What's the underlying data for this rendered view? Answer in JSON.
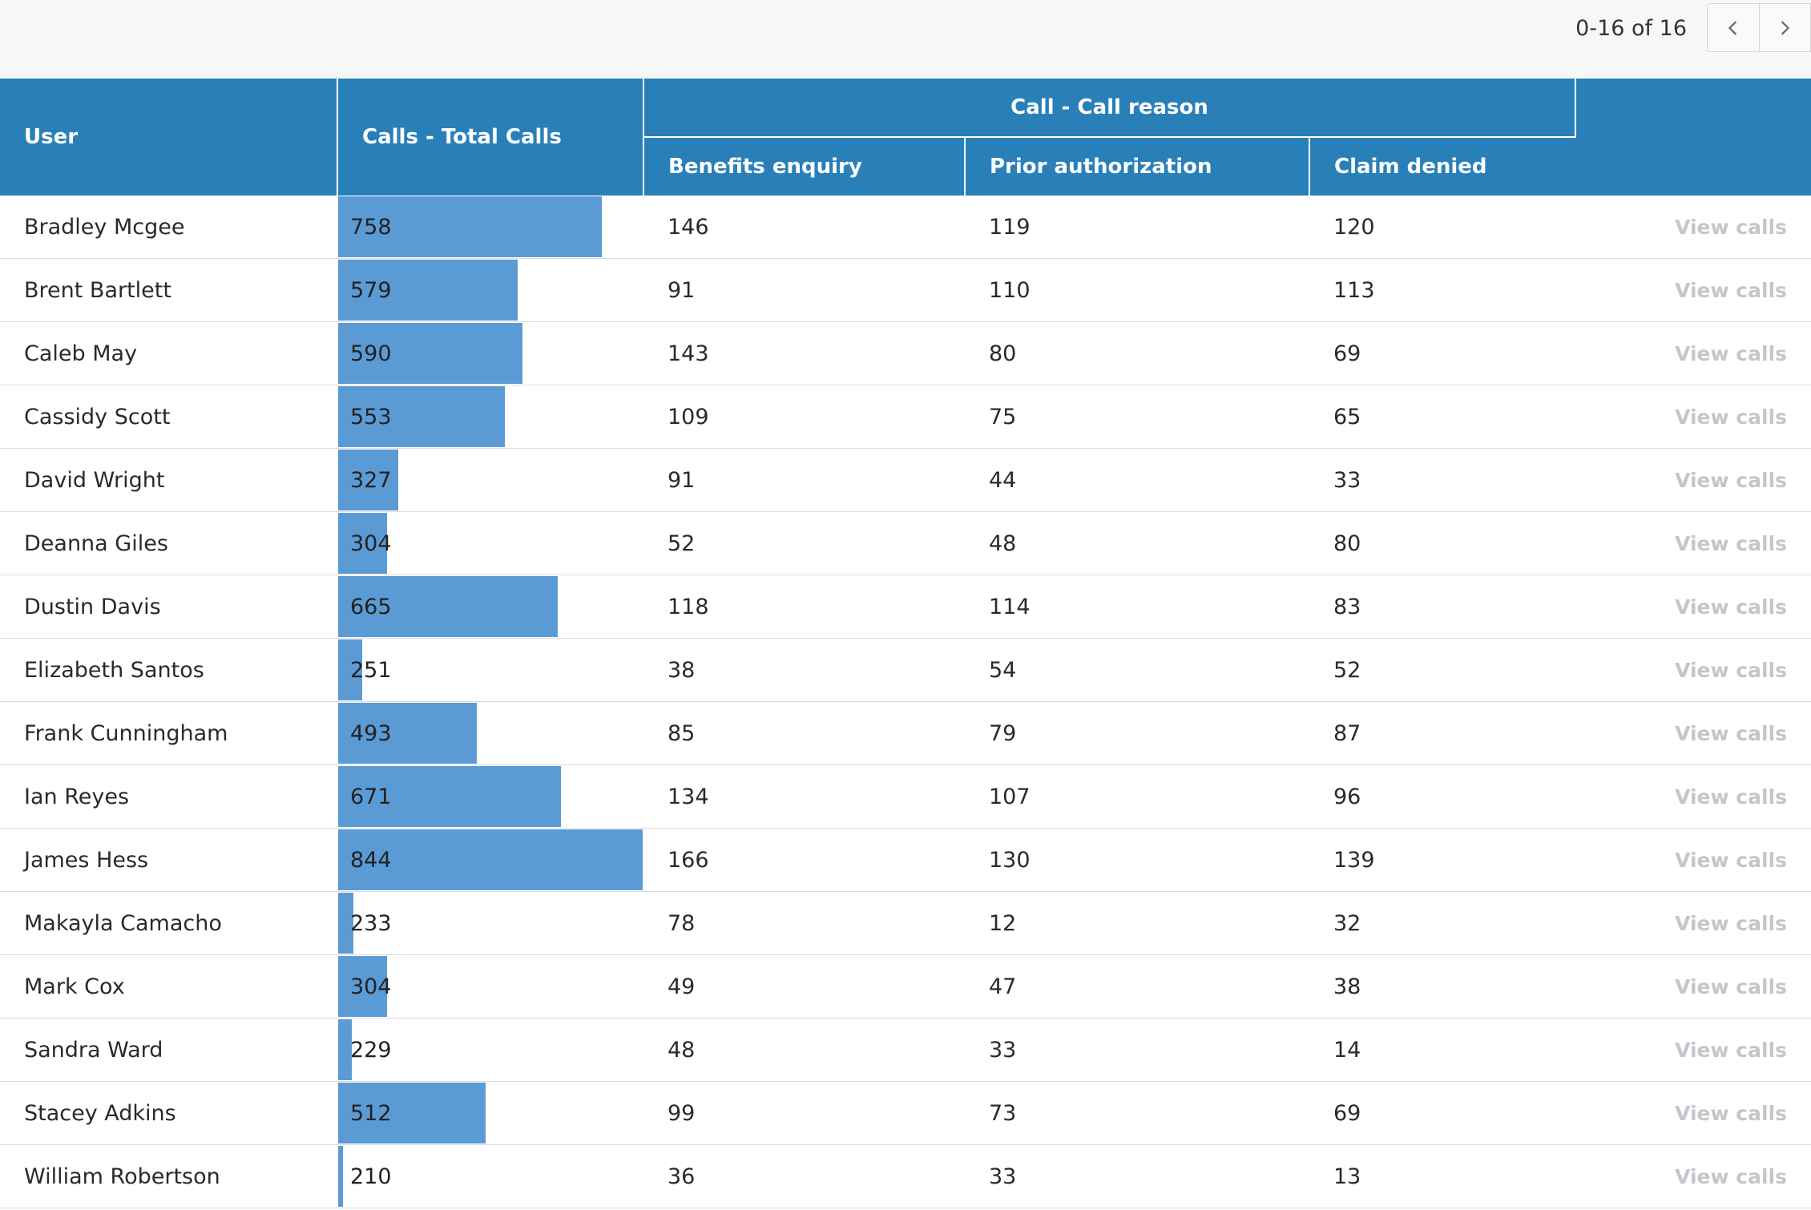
{
  "pagination": {
    "range_text": "0-16 of 16",
    "prev_icon": "chevron-left-icon",
    "next_icon": "chevron-right-icon"
  },
  "colors": {
    "header_bg": "#2980b9",
    "bar": "#5b9bd5",
    "link": "#2d7fbd",
    "view_calls": "#c3c6ca"
  },
  "table": {
    "headers": {
      "user": "User",
      "total_calls": "Calls - Total Calls",
      "group": "Call - Call reason",
      "benefits": "Benefits enquiry",
      "prior_auth": "Prior authorization",
      "claim_denied": "Claim denied"
    },
    "action_label": "View calls",
    "bar_max": 844,
    "rows": [
      {
        "user": "Bradley Mcgee",
        "total": 758,
        "benefits": "146",
        "prior_auth": "119",
        "claim_denied": "120"
      },
      {
        "user": "Brent Bartlett",
        "total": 579,
        "benefits": "91",
        "prior_auth": "110",
        "claim_denied": "113"
      },
      {
        "user": "Caleb May",
        "total": 590,
        "benefits": "143",
        "prior_auth": "80",
        "claim_denied": "69"
      },
      {
        "user": "Cassidy Scott",
        "total": 553,
        "benefits": "109",
        "prior_auth": "75",
        "claim_denied": "65"
      },
      {
        "user": "David Wright",
        "total": 327,
        "benefits": "91",
        "prior_auth": "44",
        "claim_denied": "33"
      },
      {
        "user": "Deanna Giles",
        "total": 304,
        "benefits": "52",
        "prior_auth": "48",
        "claim_denied": "80"
      },
      {
        "user": "Dustin Davis",
        "total": 665,
        "benefits": "118",
        "prior_auth": "114",
        "claim_denied": "83"
      },
      {
        "user": "Elizabeth Santos",
        "total": 251,
        "benefits": "38",
        "prior_auth": "54",
        "claim_denied": "52"
      },
      {
        "user": "Frank Cunningham",
        "total": 493,
        "benefits": "85",
        "prior_auth": "79",
        "claim_denied": "87"
      },
      {
        "user": "Ian Reyes",
        "total": 671,
        "benefits": "134",
        "prior_auth": "107",
        "claim_denied": "96"
      },
      {
        "user": "James Hess",
        "total": 844,
        "benefits": "166",
        "prior_auth": "130",
        "claim_denied": "139"
      },
      {
        "user": "Makayla Camacho",
        "total": 233,
        "benefits": "78",
        "prior_auth": "12",
        "claim_denied": "32"
      },
      {
        "user": "Mark Cox",
        "total": 304,
        "benefits": "49",
        "prior_auth": "47",
        "claim_denied": "38"
      },
      {
        "user": "Sandra Ward",
        "total": 229,
        "benefits": "48",
        "prior_auth": "33",
        "claim_denied": "14"
      },
      {
        "user": "Stacey Adkins",
        "total": 512,
        "benefits": "99",
        "prior_auth": "73",
        "claim_denied": "69"
      },
      {
        "user": "William Robertson",
        "total": 210,
        "benefits": "36",
        "prior_auth": "33",
        "claim_denied": "13"
      }
    ]
  }
}
